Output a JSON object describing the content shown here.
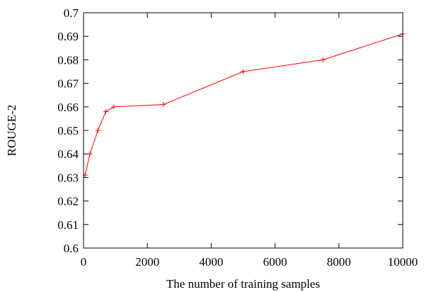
{
  "chart_data": {
    "type": "line",
    "title": "",
    "xlabel": "The number of training samples",
    "ylabel": "ROUGE-2",
    "xlim": [
      0,
      10000
    ],
    "ylim": [
      0.6,
      0.7
    ],
    "xticks": [
      0,
      2000,
      4000,
      6000,
      8000,
      10000
    ],
    "xtick_labels": [
      "0",
      "2000",
      "4000",
      "6000",
      "8000",
      "10000"
    ],
    "yticks": [
      0.6,
      0.61,
      0.62,
      0.63,
      0.64,
      0.65,
      0.66,
      0.67,
      0.68,
      0.69,
      0.7
    ],
    "ytick_labels": [
      "0.6",
      "0.61",
      "0.62",
      "0.63",
      "0.64",
      "0.65",
      "0.66",
      "0.67",
      "0.68",
      "0.69",
      "0.7"
    ],
    "grid": false,
    "legend": "none",
    "marker": "plus",
    "series": [
      {
        "color": "#ff0000",
        "x": [
          50,
          200,
          450,
          700,
          950,
          2500,
          5000,
          7500,
          10000
        ],
        "y": [
          0.631,
          0.64,
          0.65,
          0.658,
          0.66,
          0.661,
          0.675,
          0.68,
          0.691
        ]
      }
    ]
  }
}
